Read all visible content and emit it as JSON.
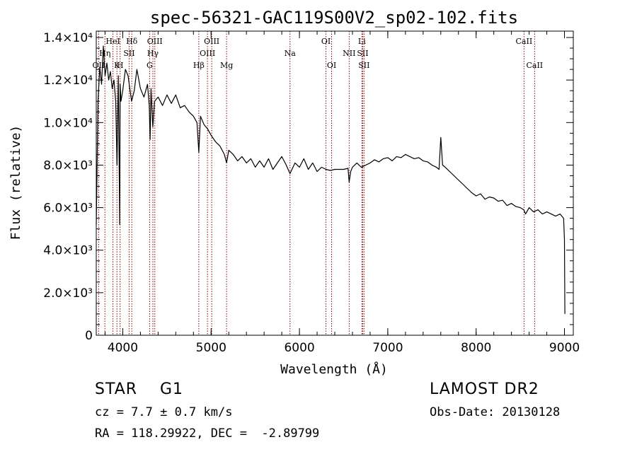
{
  "chart_data": {
    "type": "line",
    "title": "spec-56321-GAC119S00V2_sp02-102.fits",
    "xlabel": "Wavelength (Å)",
    "ylabel": "Flux (relative)",
    "xlim": [
      3700,
      9100
    ],
    "ylim": [
      0,
      14300
    ],
    "xticks": [
      {
        "value": 4000,
        "label": "4000"
      },
      {
        "value": 5000,
        "label": "5000"
      },
      {
        "value": 6000,
        "label": "6000"
      },
      {
        "value": 7000,
        "label": "7000"
      },
      {
        "value": 8000,
        "label": "8000"
      },
      {
        "value": 9000,
        "label": "9000"
      }
    ],
    "yticks": [
      {
        "value": 0,
        "label": "0"
      },
      {
        "value": 2000,
        "label": "2.0×10³"
      },
      {
        "value": 4000,
        "label": "4.0×10³"
      },
      {
        "value": 6000,
        "label": "6.0×10³"
      },
      {
        "value": 8000,
        "label": "8.0×10³"
      },
      {
        "value": 10000,
        "label": "1.0×10⁴"
      },
      {
        "value": 12000,
        "label": "1.2×10⁴"
      },
      {
        "value": 14000,
        "label": "1.4×10⁴"
      }
    ],
    "grid": false,
    "line_color": "#000000",
    "marker_color": "#8b0000",
    "series": [
      {
        "x": [
          3700,
          3720,
          3740,
          3760,
          3780,
          3800,
          3820,
          3840,
          3860,
          3880,
          3900,
          3920,
          3935,
          3950,
          3965,
          3970,
          3980,
          4000,
          4030,
          4060,
          4080,
          4100,
          4130,
          4160,
          4200,
          4240,
          4280,
          4300,
          4310,
          4320,
          4340,
          4360,
          4400,
          4450,
          4500,
          4550,
          4600,
          4650,
          4700,
          4750,
          4800,
          4840,
          4861,
          4880,
          4920,
          4960,
          5000,
          5050,
          5100,
          5150,
          5175,
          5200,
          5250,
          5300,
          5350,
          5400,
          5450,
          5500,
          5550,
          5600,
          5650,
          5700,
          5750,
          5800,
          5850,
          5893,
          5950,
          6000,
          6050,
          6100,
          6150,
          6200,
          6250,
          6300,
          6350,
          6400,
          6450,
          6500,
          6550,
          6563,
          6580,
          6600,
          6650,
          6700,
          6750,
          6800,
          6850,
          6900,
          6950,
          7000,
          7050,
          7100,
          7150,
          7200,
          7250,
          7300,
          7350,
          7400,
          7450,
          7500,
          7550,
          7580,
          7600,
          7620,
          7650,
          7700,
          7750,
          7800,
          7850,
          7900,
          7950,
          8000,
          8050,
          8100,
          8150,
          8200,
          8250,
          8300,
          8350,
          8400,
          8450,
          8500,
          8540,
          8560,
          8600,
          8650,
          8700,
          8750,
          8800,
          8850,
          8900,
          8950,
          8990,
          9000,
          9005
        ],
        "y": [
          5200,
          11000,
          12600,
          11800,
          13600,
          12200,
          12800,
          12000,
          12400,
          11600,
          12000,
          11000,
          8000,
          12200,
          5200,
          11800,
          11000,
          11500,
          12500,
          12200,
          11600,
          11000,
          11500,
          12500,
          11600,
          11200,
          11800,
          10800,
          9200,
          11600,
          9800,
          11000,
          11200,
          10800,
          11300,
          10900,
          11300,
          10700,
          10800,
          10500,
          10300,
          10000,
          8600,
          10300,
          9900,
          9700,
          9400,
          9100,
          8900,
          8500,
          8100,
          8700,
          8500,
          8200,
          8400,
          8100,
          8300,
          7900,
          8200,
          7900,
          8300,
          7800,
          8100,
          8400,
          8000,
          7600,
          8100,
          7900,
          8300,
          7800,
          8100,
          7700,
          7900,
          7800,
          7750,
          7800,
          7800,
          7800,
          7850,
          7200,
          7700,
          7900,
          8100,
          7900,
          8000,
          8100,
          8250,
          8150,
          8300,
          8350,
          8200,
          8400,
          8350,
          8500,
          8400,
          8300,
          8350,
          8200,
          8150,
          8000,
          7900,
          7800,
          9300,
          8000,
          7900,
          7700,
          7500,
          7300,
          7100,
          6900,
          6700,
          6550,
          6650,
          6400,
          6500,
          6450,
          6300,
          6350,
          6100,
          6200,
          6050,
          6000,
          5900,
          5700,
          6000,
          5800,
          5900,
          5700,
          5800,
          5700,
          5600,
          5700,
          5500,
          4500,
          1000
        ]
      }
    ],
    "line_markers": [
      {
        "x": 3727,
        "row": 3,
        "label": "OII"
      },
      {
        "x": 3798,
        "row": 2,
        "label": "Hη"
      },
      {
        "x": 3889,
        "row": 1,
        "label": "HeI"
      },
      {
        "x": 3934,
        "row": 3,
        "label": "K"
      },
      {
        "x": 3970,
        "row": 3,
        "label": "H"
      },
      {
        "x": 4072,
        "row": 2,
        "label": "SII"
      },
      {
        "x": 4102,
        "row": 1,
        "label": "Hδ"
      },
      {
        "x": 4304,
        "row": 3,
        "label": "G"
      },
      {
        "x": 4341,
        "row": 2,
        "label": "Hγ"
      },
      {
        "x": 4363,
        "row": 1,
        "label": "OIII"
      },
      {
        "x": 4861,
        "row": 3,
        "label": "Hβ"
      },
      {
        "x": 4959,
        "row": 2,
        "label": "OIII"
      },
      {
        "x": 5007,
        "row": 1,
        "label": "OIII"
      },
      {
        "x": 5175,
        "row": 3,
        "label": "Mg"
      },
      {
        "x": 5893,
        "row": 2,
        "label": "Na"
      },
      {
        "x": 6300,
        "row": 1,
        "label": "OI"
      },
      {
        "x": 6364,
        "row": 3,
        "label": "OI"
      },
      {
        "x": 6563,
        "row": 2,
        "label": "NII"
      },
      {
        "x": 6707,
        "row": 1,
        "label": "Li"
      },
      {
        "x": 6716,
        "row": 2,
        "label": "SII"
      },
      {
        "x": 6731,
        "row": 3,
        "label": "SII"
      },
      {
        "x": 8542,
        "row": 1,
        "label": "CaII"
      },
      {
        "x": 8662,
        "row": 3,
        "label": "CaII"
      }
    ]
  },
  "info": {
    "object_class": "STAR    G1",
    "survey": "LAMOST DR2",
    "cz": "cz = 7.7 ± 0.7 km/s",
    "obs_date": "Obs-Date: 20130128",
    "radec": "RA = 118.29922, DEC =  -2.89799"
  }
}
